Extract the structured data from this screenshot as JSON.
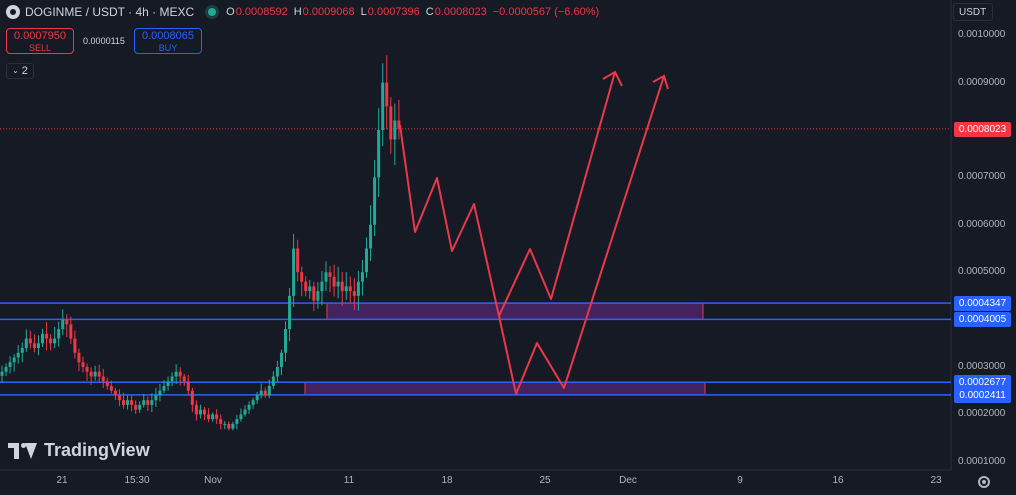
{
  "header": {
    "symbol": "DOGINME / USDT · 4h · MEXC",
    "ohlc": [
      {
        "key": "O",
        "value": "0.0008592"
      },
      {
        "key": "H",
        "value": "0.0009068"
      },
      {
        "key": "L",
        "value": "0.0007396"
      },
      {
        "key": "C",
        "value": "0.0008023"
      },
      {
        "key": "",
        "value": "−0.0000567 (−6.60%)"
      }
    ]
  },
  "trade": {
    "sell_price": "0.0007950",
    "sell_label": "SELL",
    "spread": "0.0000115",
    "buy_price": "0.0008065",
    "buy_label": "BUY"
  },
  "indicators_toggle": "2",
  "currency": "USDT",
  "logo_text": "TradingView",
  "colors": {
    "up": "#22ab94",
    "down": "#f23645",
    "blue": "#2962ff",
    "zone_fill": "#6b2a8c",
    "arrow": "#e8394a"
  },
  "chart_data": {
    "type": "candlestick",
    "x_ticks": [
      "21",
      "15:30",
      "Nov",
      "11",
      "18",
      "25",
      "Dec",
      "9",
      "16",
      "23"
    ],
    "y_ticks": [
      "0.0010000",
      "0.0009000",
      "0.0007000",
      "0.0006000",
      "0.0005000",
      "0.0003000",
      "0.0002000",
      "0.0001000"
    ],
    "last_price": "0.0008023",
    "levels": [
      "0.0004347",
      "0.0004005",
      "0.0002677",
      "0.0002411"
    ],
    "closes": [
      0.00029,
      0.0003,
      0.00031,
      0.00032,
      0.00033,
      0.00034,
      0.00036,
      0.00035,
      0.00034,
      0.00035,
      0.00037,
      0.00036,
      0.00035,
      0.00036,
      0.00038,
      0.0004,
      0.00039,
      0.00036,
      0.00033,
      0.00031,
      0.0003,
      0.00029,
      0.00028,
      0.00029,
      0.00028,
      0.00027,
      0.00026,
      0.00025,
      0.00024,
      0.00023,
      0.00022,
      0.00023,
      0.00022,
      0.00021,
      0.00022,
      0.00023,
      0.00022,
      0.00023,
      0.00024,
      0.00025,
      0.00026,
      0.00027,
      0.00028,
      0.00029,
      0.00028,
      0.00027,
      0.00025,
      0.00022,
      0.0002,
      0.00021,
      0.0002,
      0.00019,
      0.0002,
      0.00019,
      0.00018,
      0.00018,
      0.00017,
      0.00018,
      0.00019,
      0.0002,
      0.00021,
      0.00022,
      0.00023,
      0.00024,
      0.00025,
      0.00024,
      0.00026,
      0.00028,
      0.0003,
      0.00033,
      0.00038,
      0.00045,
      0.00055,
      0.0005,
      0.00048,
      0.00046,
      0.00047,
      0.00044,
      0.00046,
      0.00048,
      0.0005,
      0.00049,
      0.00047,
      0.00048,
      0.00046,
      0.00047,
      0.00046,
      0.00045,
      0.00048,
      0.0005,
      0.00055,
      0.0006,
      0.0007,
      0.0008,
      0.0009,
      0.00085,
      0.00078,
      0.00082,
      0.0008023
    ]
  }
}
